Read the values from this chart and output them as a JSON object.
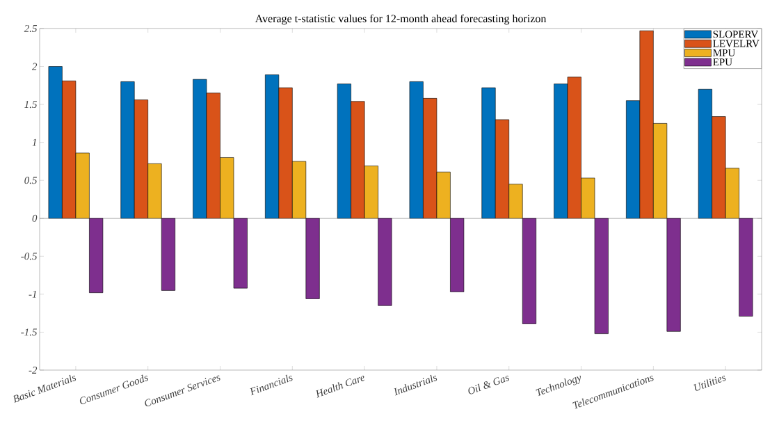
{
  "chart_data": {
    "type": "bar",
    "title": "Average t-statistic values for 12-month ahead forecasting horizon",
    "categories": [
      "Basic Materials",
      "Consumer Goods",
      "Consumer Services",
      "Financials",
      "Health Care",
      "Industrials",
      "Oil & Gas",
      "Technology",
      "Telecommunications",
      "Utilities"
    ],
    "series": [
      {
        "name": "SLOPERV",
        "color": "#0072bd",
        "values": [
          2.0,
          1.8,
          1.83,
          1.89,
          1.77,
          1.8,
          1.72,
          1.77,
          1.55,
          1.7
        ]
      },
      {
        "name": "LEVELRV",
        "color": "#d95319",
        "values": [
          1.81,
          1.56,
          1.65,
          1.72,
          1.54,
          1.58,
          1.3,
          1.86,
          2.47,
          1.34
        ]
      },
      {
        "name": "MPU",
        "color": "#edb120",
        "values": [
          0.86,
          0.72,
          0.8,
          0.75,
          0.69,
          0.61,
          0.45,
          0.53,
          1.25,
          0.66
        ]
      },
      {
        "name": "EPU",
        "color": "#7e2f8e",
        "values": [
          -0.98,
          -0.95,
          -0.92,
          -1.06,
          -1.15,
          -0.97,
          -1.39,
          -1.52,
          -1.49,
          -1.29
        ]
      }
    ],
    "ylim": [
      -2,
      2.5
    ],
    "yticks": [
      -2,
      -1.5,
      -1,
      -0.5,
      0,
      0.5,
      1,
      1.5,
      2,
      2.5
    ],
    "legend": "top right"
  }
}
